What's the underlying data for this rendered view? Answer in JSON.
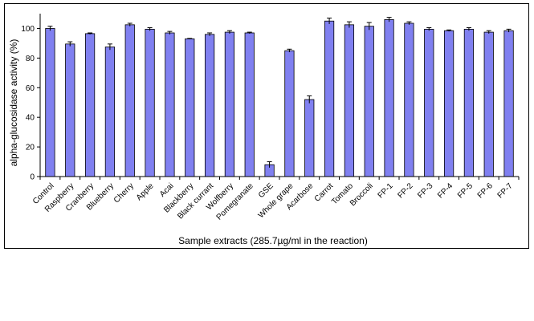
{
  "chart_data": {
    "type": "bar",
    "title": "",
    "xlabel": "Sample extracts (285.7µg/ml in the reaction)",
    "ylabel": "alpha-glucosidase activity (%)",
    "ylim": [
      0,
      110
    ],
    "yticks": [
      0,
      20,
      40,
      60,
      80,
      100
    ],
    "grid": false,
    "bar_color": "#8080f0",
    "categories": [
      "Control",
      "Raspberry",
      "Cranberry",
      "Blueberry",
      "Cherry",
      "Apple",
      "Acai",
      "Blackberry",
      "Black currant",
      "Wolfberry",
      "Pomegranate",
      "GSE",
      "Whole grape",
      "Acarbose",
      "Carrot",
      "Tomato",
      "Broccoli",
      "FP-1",
      "FP-2",
      "FP-3",
      "FP-4",
      "FP-5",
      "FP-6",
      "FP-7"
    ],
    "values": [
      100,
      89.5,
      96.5,
      87.5,
      102.5,
      99.5,
      97,
      93,
      96,
      97.5,
      97,
      8,
      85,
      52,
      105,
      102.5,
      101.5,
      106,
      103.5,
      99.5,
      98.5,
      99.5,
      97.5,
      98.5
    ],
    "errors": [
      1.5,
      1.5,
      0.5,
      2,
      1,
      1,
      1,
      0.3,
      1,
      1,
      0.5,
      2,
      1,
      2.5,
      2,
      2,
      2.5,
      1.5,
      1,
      1,
      0.5,
      1,
      1,
      1
    ]
  }
}
